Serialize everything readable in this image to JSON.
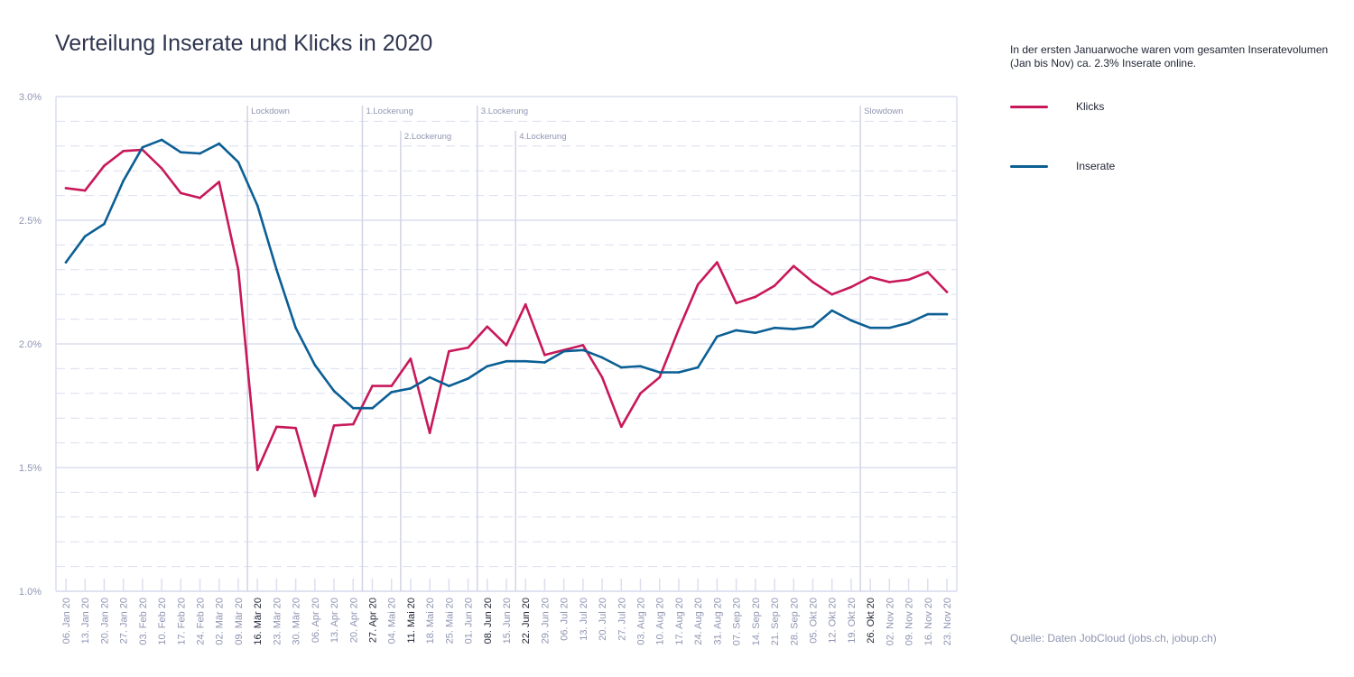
{
  "title": "Verteilung Inserate und Klicks in 2020",
  "note": "In der ersten Januarwoche waren vom gesamten Inseratevolumen (Jan bis Nov) ca. 2.3% Inserate online.",
  "source": "Quelle: Daten JobCloud (jobs.ch, jobup.ch)",
  "colors": {
    "klicks": "#c8185a",
    "inserate": "#0b5f94",
    "grid": "#dcdef0",
    "axis_text": "#8f95b2"
  },
  "chart_data": {
    "type": "line",
    "title": "Verteilung Inserate und Klicks in 2020",
    "legend_position": "right",
    "ylim": [
      1.0,
      3.0
    ],
    "y_tick_labels": [
      "1.0%",
      "1.5%",
      "2.0%",
      "2.5%",
      "3.0%"
    ],
    "y_ticks": [
      1.0,
      1.5,
      2.0,
      2.5,
      3.0
    ],
    "x": [
      "06. Jan 20",
      "13. Jan 20",
      "20. Jan 20",
      "27. Jan 20",
      "03. Feb 20",
      "10. Feb 20",
      "17. Feb 20",
      "24. Feb 20",
      "02. Mär 20",
      "09. Mär 20",
      "16. Mär 20",
      "23. Mär 20",
      "30. Mär 20",
      "06. Apr 20",
      "13. Apr 20",
      "20. Apr 20",
      "27. Apr 20",
      "04. Mai 20",
      "11. Mai 20",
      "18. Mai 20",
      "25. Mai 20",
      "01. Jun 20",
      "08. Jun 20",
      "15. Jun 20",
      "22. Jun 20",
      "29. Jun 20",
      "06. Jul 20",
      "13. Jul 20",
      "20. Jul 20",
      "27. Jul 20",
      "03. Aug 20",
      "10. Aug 20",
      "17. Aug 20",
      "24. Aug 20",
      "31. Aug 20",
      "07. Sep 20",
      "14. Sep 20",
      "21. Sep 20",
      "28. Sep 20",
      "05. Okt 20",
      "12. Okt 20",
      "19. Okt 20",
      "26. Okt 20",
      "02. Nov 20",
      "09. Nov 20",
      "16. Nov 20",
      "23. Nov 20"
    ],
    "bold_x_labels": [
      "16. Mär 20",
      "27. Apr 20",
      "11. Mai 20",
      "08. Jun 20",
      "22. Jun 20",
      "26. Okt 20"
    ],
    "series": [
      {
        "name": "Klicks",
        "color": "#c8185a",
        "values": [
          2.63,
          2.62,
          2.72,
          2.78,
          2.785,
          2.71,
          2.61,
          2.59,
          2.655,
          2.3,
          1.49,
          1.665,
          1.66,
          1.385,
          1.67,
          1.675,
          1.83,
          1.83,
          1.94,
          1.64,
          1.97,
          1.985,
          2.07,
          1.995,
          2.16,
          1.955,
          1.975,
          1.995,
          1.865,
          1.665,
          1.8,
          1.865,
          2.06,
          2.24,
          2.33,
          2.165,
          2.19,
          2.235,
          2.315,
          2.25,
          2.2,
          2.23,
          2.27,
          2.25,
          2.26,
          2.29,
          2.21
        ]
      },
      {
        "name": "Inserate",
        "color": "#0b5f94",
        "values": [
          2.33,
          2.435,
          2.485,
          2.66,
          2.795,
          2.825,
          2.775,
          2.77,
          2.81,
          2.735,
          2.56,
          2.3,
          2.065,
          1.915,
          1.81,
          1.74,
          1.74,
          1.805,
          1.82,
          1.865,
          1.83,
          1.86,
          1.91,
          1.93,
          1.93,
          1.925,
          1.97,
          1.975,
          1.945,
          1.905,
          1.91,
          1.885,
          1.885,
          1.905,
          2.03,
          2.055,
          2.045,
          2.065,
          2.06,
          2.07,
          2.135,
          2.095,
          2.065,
          2.065,
          2.085,
          2.12,
          2.12
        ]
      }
    ],
    "events": [
      {
        "label": "Lockdown",
        "at": "16. Mär 20",
        "row": 0
      },
      {
        "label": "1.Lockerung",
        "at": "27. Apr 20",
        "row": 0
      },
      {
        "label": "2.Lockerung",
        "at": "11. Mai 20",
        "row": 1
      },
      {
        "label": "3.Lockerung",
        "at": "08. Jun 20",
        "row": 0
      },
      {
        "label": "4.Lockerung",
        "at": "22. Jun 20",
        "row": 1
      },
      {
        "label": "Slowdown",
        "at": "26. Okt 20",
        "row": 0
      }
    ]
  }
}
